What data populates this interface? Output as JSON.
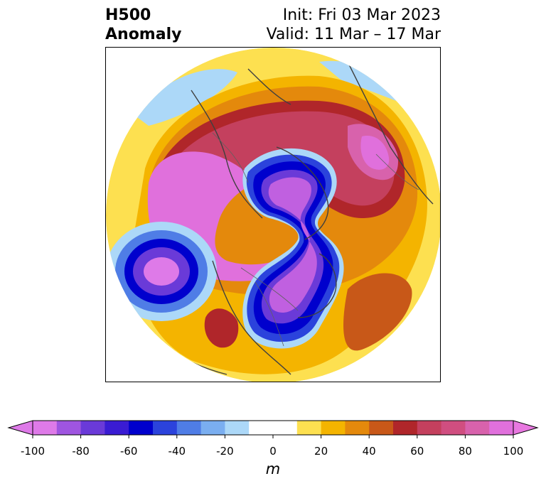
{
  "header": {
    "title_line1": "H500",
    "title_line2": "Anomaly",
    "init_text": "Init: Fri 03 Mar 2023",
    "valid_text": "Valid: 11 Mar – 17 Mar"
  },
  "map": {
    "projection": "north-polar-stereographic",
    "field": "500 hPa geopotential height anomaly",
    "features": [
      "coastlines",
      "country-borders"
    ],
    "anomaly_centers": [
      {
        "name": "north-pacific-low",
        "value_m": -100
      },
      {
        "name": "polar-vortex-trough",
        "value_m": -100
      },
      {
        "name": "north-america-trough",
        "value_m": -100
      },
      {
        "name": "arctic-ridge",
        "value_m": 100
      },
      {
        "name": "siberian-ridge",
        "value_m": 100
      },
      {
        "name": "north-atlantic-ridge",
        "value_m": 60
      },
      {
        "name": "east-asia-ridge",
        "value_m": 60
      }
    ]
  },
  "colorbar": {
    "unit": "m",
    "ticks": [
      "-100",
      "-80",
      "-60",
      "-40",
      "-20",
      "0",
      "20",
      "40",
      "60",
      "80",
      "100"
    ],
    "tick_values": [
      -100,
      -80,
      -60,
      -40,
      -20,
      0,
      20,
      40,
      60,
      80,
      100
    ],
    "extend": "both",
    "colors": [
      "#de7ae8",
      "#9f55e0",
      "#6a3ad8",
      "#3a1cd3",
      "#0000cd",
      "#2b43dc",
      "#4f7de6",
      "#7aaef0",
      "#acd8f8",
      "#ffffff",
      "#ffffff",
      "#fde050",
      "#f4b400",
      "#e4890c",
      "#c85818",
      "#b0262a",
      "#c4405e",
      "#d04e80",
      "#d862ac",
      "#e070dc"
    ],
    "under_color": "#de7ae8",
    "over_color": "#e878e0"
  }
}
